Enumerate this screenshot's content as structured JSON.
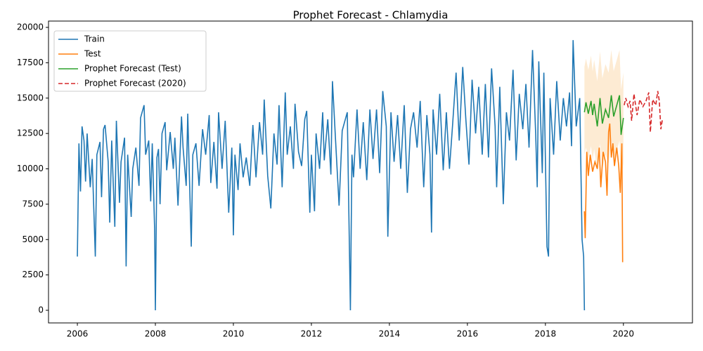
{
  "chart_data": {
    "type": "line",
    "title": "Prophet Forecast - Chlamydia",
    "xlim": [
      2005.26,
      2021.77
    ],
    "ylim": [
      -893,
      20447
    ],
    "xticks": [
      2006,
      2008,
      2010,
      2012,
      2014,
      2016,
      2018,
      2020
    ],
    "yticks": [
      0,
      2500,
      5000,
      7500,
      10000,
      12500,
      15000,
      17500,
      20000
    ],
    "legend": "upper left",
    "series": [
      {
        "name": "Train",
        "color": "#1f77b4",
        "linestyle": "solid",
        "x": [
          2006.0,
          2006.04,
          2006.08,
          2006.12,
          2006.17,
          2006.21,
          2006.25,
          2006.33,
          2006.38,
          2006.46,
          2006.5,
          2006.58,
          2006.62,
          2006.67,
          2006.71,
          2006.79,
          2006.83,
          2006.88,
          2006.96,
          2007.0,
          2007.08,
          2007.12,
          2007.21,
          2007.25,
          2007.29,
          2007.38,
          2007.42,
          2007.5,
          2007.58,
          2007.62,
          2007.71,
          2007.75,
          2007.83,
          2007.88,
          2007.92,
          2007.98,
          2008.0,
          2008.04,
          2008.08,
          2008.12,
          2008.17,
          2008.25,
          2008.29,
          2008.38,
          2008.46,
          2008.5,
          2008.58,
          2008.67,
          2008.71,
          2008.79,
          2008.83,
          2008.92,
          2008.96,
          2009.04,
          2009.12,
          2009.21,
          2009.29,
          2009.38,
          2009.42,
          2009.5,
          2009.58,
          2009.62,
          2009.71,
          2009.79,
          2009.88,
          2009.96,
          2010.0,
          2010.04,
          2010.12,
          2010.17,
          2010.25,
          2010.33,
          2010.42,
          2010.5,
          2010.58,
          2010.67,
          2010.75,
          2010.79,
          2010.88,
          2010.96,
          2011.04,
          2011.12,
          2011.17,
          2011.25,
          2011.33,
          2011.38,
          2011.46,
          2011.54,
          2011.58,
          2011.67,
          2011.75,
          2011.83,
          2011.88,
          2011.96,
          2012.0,
          2012.08,
          2012.12,
          2012.21,
          2012.29,
          2012.33,
          2012.42,
          2012.5,
          2012.54,
          2012.62,
          2012.71,
          2012.79,
          2012.92,
          2013.0,
          2013.04,
          2013.08,
          2013.17,
          2013.25,
          2013.33,
          2013.42,
          2013.5,
          2013.58,
          2013.67,
          2013.75,
          2013.83,
          2013.92,
          2013.96,
          2014.04,
          2014.12,
          2014.21,
          2014.29,
          2014.38,
          2014.46,
          2014.54,
          2014.62,
          2014.71,
          2014.79,
          2014.88,
          2014.96,
          2015.04,
          2015.08,
          2015.12,
          2015.21,
          2015.29,
          2015.38,
          2015.46,
          2015.54,
          2015.62,
          2015.71,
          2015.79,
          2015.88,
          2015.96,
          2016.04,
          2016.12,
          2016.21,
          2016.29,
          2016.38,
          2016.46,
          2016.54,
          2016.62,
          2016.71,
          2016.75,
          2016.83,
          2016.92,
          2017.0,
          2017.08,
          2017.17,
          2017.25,
          2017.33,
          2017.42,
          2017.5,
          2017.58,
          2017.67,
          2017.75,
          2017.79,
          2017.83,
          2017.92,
          2017.96,
          2018.04,
          2018.08,
          2018.12,
          2018.21,
          2018.29,
          2018.38,
          2018.46,
          2018.54,
          2018.62,
          2018.67,
          2018.71,
          2018.79,
          2018.88,
          2018.94,
          2018.98,
          2019.0
        ],
        "values": [
          3800,
          11800,
          8400,
          13000,
          12000,
          9100,
          12500,
          8700,
          10700,
          3800,
          11000,
          11900,
          8000,
          12800,
          13100,
          10500,
          6200,
          12000,
          5900,
          13400,
          7600,
          10500,
          12200,
          3100,
          11000,
          6600,
          10000,
          11500,
          8800,
          13600,
          14500,
          11000,
          12000,
          7700,
          11800,
          5800,
          0,
          10800,
          11400,
          7500,
          12500,
          13300,
          9900,
          12600,
          10000,
          12200,
          7400,
          13700,
          11500,
          8800,
          13900,
          4500,
          11000,
          11800,
          8800,
          12800,
          11000,
          13800,
          9000,
          11900,
          8600,
          14000,
          10000,
          13400,
          6900,
          11500,
          5300,
          11000,
          8500,
          11800,
          9400,
          10800,
          8800,
          13100,
          9400,
          13300,
          11000,
          14900,
          9500,
          7200,
          12500,
          10300,
          14500,
          8700,
          15400,
          11000,
          13000,
          10000,
          14600,
          11200,
          10200,
          13500,
          14100,
          6900,
          11000,
          7000,
          12500,
          10000,
          14000,
          10600,
          13500,
          9600,
          16200,
          12000,
          7400,
          12700,
          14000,
          0,
          11000,
          9400,
          14200,
          10000,
          13300,
          9200,
          14200,
          10700,
          14200,
          9700,
          15500,
          13000,
          5200,
          14000,
          10500,
          13800,
          10000,
          14500,
          8300,
          12800,
          14000,
          11500,
          14800,
          8700,
          13800,
          11000,
          5500,
          14200,
          11000,
          15300,
          9900,
          14000,
          10000,
          13100,
          16800,
          12000,
          17200,
          13500,
          10300,
          16300,
          12500,
          15800,
          11000,
          16000,
          10800,
          17100,
          13000,
          8700,
          15800,
          7500,
          14000,
          12000,
          17000,
          10600,
          15300,
          12800,
          16000,
          11500,
          18400,
          12500,
          8700,
          17600,
          9700,
          16800,
          4500,
          3800,
          15000,
          11000,
          16200,
          12000,
          15000,
          13000,
          15400,
          11600,
          19100,
          13000,
          15000,
          5000,
          3800,
          0
        ]
      },
      {
        "name": "Test",
        "color": "#ff7f0e",
        "linestyle": "solid",
        "x": [
          2019.0,
          2019.02,
          2019.06,
          2019.1,
          2019.15,
          2019.21,
          2019.27,
          2019.33,
          2019.38,
          2019.42,
          2019.48,
          2019.54,
          2019.58,
          2019.62,
          2019.65,
          2019.69,
          2019.73,
          2019.77,
          2019.83,
          2019.88,
          2019.92,
          2019.96,
          2019.98
        ],
        "values": [
          7000,
          5100,
          11200,
          9500,
          11000,
          9800,
          10500,
          10000,
          11500,
          8700,
          11200,
          10500,
          8100,
          12600,
          13200,
          10800,
          11800,
          10200,
          11500,
          10200,
          8300,
          11800,
          3400
        ]
      },
      {
        "name": "Prophet Forecast (Test)",
        "color": "#2ca02c",
        "linestyle": "solid",
        "x": [
          2019.0,
          2019.04,
          2019.1,
          2019.17,
          2019.21,
          2019.25,
          2019.33,
          2019.4,
          2019.46,
          2019.54,
          2019.62,
          2019.69,
          2019.75,
          2019.83,
          2019.9,
          2019.94,
          2020.0
        ],
        "values": [
          14000,
          14700,
          13900,
          14800,
          13800,
          14600,
          13000,
          15000,
          13200,
          14200,
          13600,
          15200,
          13700,
          14500,
          15200,
          12400,
          13600
        ]
      },
      {
        "name": "Prophet Forecast (2020)",
        "color": "#d62728",
        "linestyle": "dashed",
        "x": [
          2020.02,
          2020.06,
          2020.12,
          2020.17,
          2020.21,
          2020.27,
          2020.35,
          2020.42,
          2020.5,
          2020.58,
          2020.65,
          2020.69,
          2020.75,
          2020.83,
          2020.88,
          2020.92,
          2020.96,
          2021.0
        ],
        "values": [
          14500,
          15000,
          14400,
          14800,
          13400,
          15300,
          13800,
          14900,
          14400,
          14800,
          15400,
          12600,
          14900,
          14500,
          15500,
          14800,
          12800,
          13500
        ]
      }
    ],
    "interval": {
      "color": "#fdebd3",
      "x": [
        2019.0,
        2019.04,
        2019.1,
        2019.17,
        2019.21,
        2019.25,
        2019.33,
        2019.4,
        2019.46,
        2019.54,
        2019.62,
        2019.69,
        2019.75,
        2019.83,
        2019.9,
        2019.94,
        2020.0
      ],
      "lower": [
        11000,
        11500,
        10700,
        11600,
        10600,
        11400,
        9800,
        11800,
        10000,
        11000,
        10400,
        12000,
        10500,
        11300,
        12000,
        9200,
        10400
      ],
      "upper": [
        17200,
        17800,
        17000,
        18000,
        16900,
        17700,
        16200,
        18300,
        16400,
        17400,
        16800,
        18400,
        16900,
        17700,
        18400,
        15600,
        16800
      ]
    }
  }
}
